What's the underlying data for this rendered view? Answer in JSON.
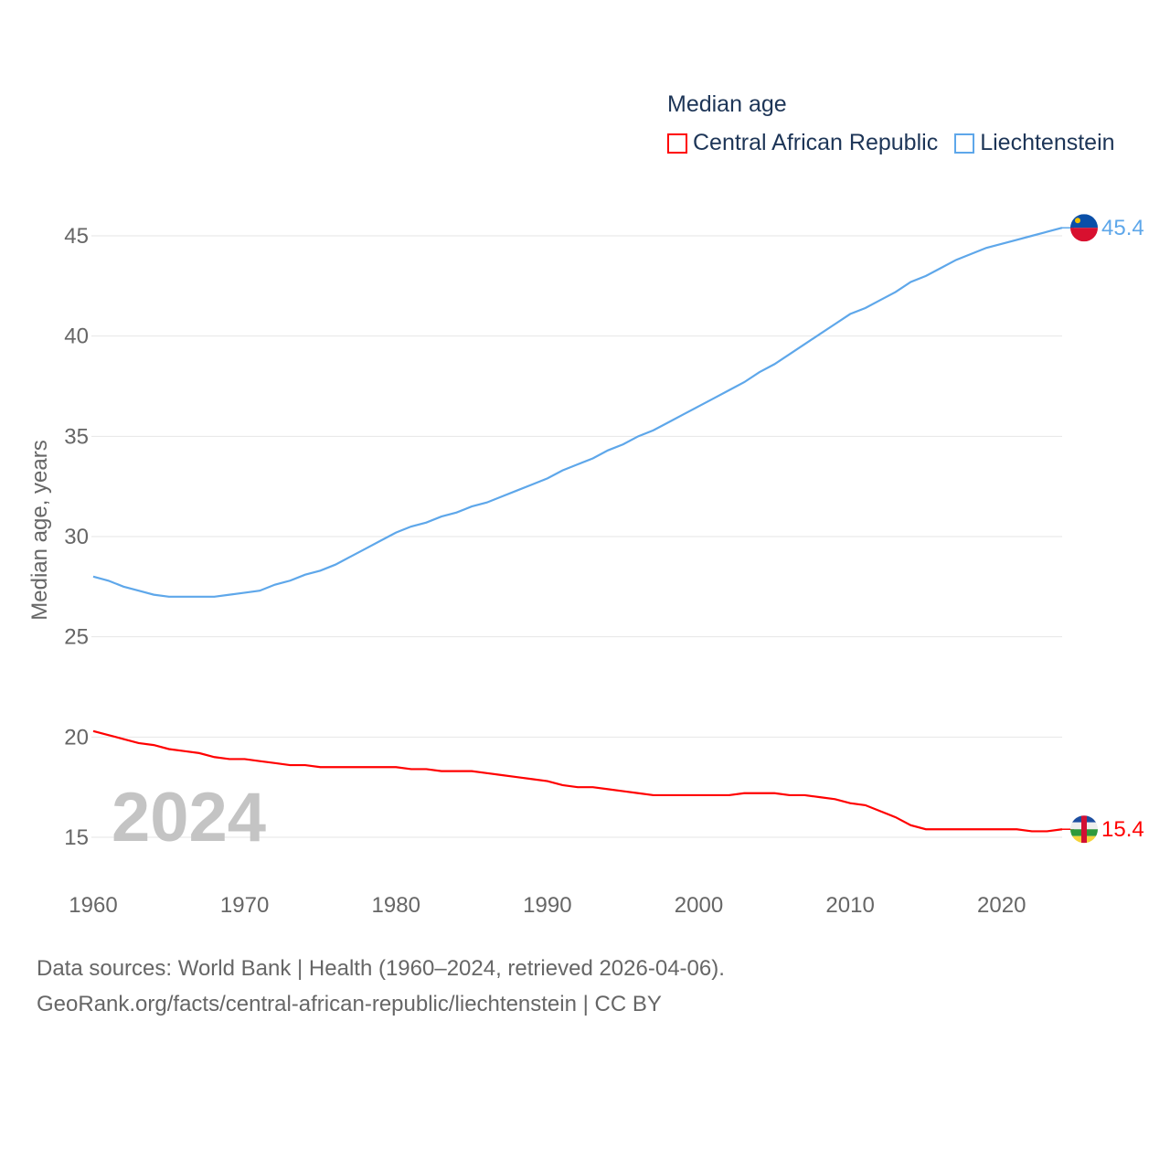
{
  "chart_data": {
    "type": "line",
    "title": "Median age",
    "ylabel": "Median age, years",
    "xlabel": "",
    "ylim": [
      13,
      47
    ],
    "xlim": [
      1960,
      2024
    ],
    "yticks": [
      15,
      20,
      25,
      30,
      35,
      40,
      45
    ],
    "xticks": [
      1960,
      1970,
      1980,
      1990,
      2000,
      2010,
      2020
    ],
    "grid": true,
    "legend_position": "top-right",
    "year_label": "2024",
    "x": [
      1960,
      1961,
      1962,
      1963,
      1964,
      1965,
      1966,
      1967,
      1968,
      1969,
      1970,
      1971,
      1972,
      1973,
      1974,
      1975,
      1976,
      1977,
      1978,
      1979,
      1980,
      1981,
      1982,
      1983,
      1984,
      1985,
      1986,
      1987,
      1988,
      1989,
      1990,
      1991,
      1992,
      1993,
      1994,
      1995,
      1996,
      1997,
      1998,
      1999,
      2000,
      2001,
      2002,
      2003,
      2004,
      2005,
      2006,
      2007,
      2008,
      2009,
      2010,
      2011,
      2012,
      2013,
      2014,
      2015,
      2016,
      2017,
      2018,
      2019,
      2020,
      2021,
      2022,
      2023,
      2024
    ],
    "series": [
      {
        "name": "Central African Republic",
        "color": "#ff0000",
        "end_label": "15.4",
        "values": [
          20.3,
          20.1,
          19.9,
          19.7,
          19.6,
          19.4,
          19.3,
          19.2,
          19.0,
          18.9,
          18.9,
          18.8,
          18.7,
          18.6,
          18.6,
          18.5,
          18.5,
          18.5,
          18.5,
          18.5,
          18.5,
          18.4,
          18.4,
          18.3,
          18.3,
          18.3,
          18.2,
          18.1,
          18.0,
          17.9,
          17.8,
          17.6,
          17.5,
          17.5,
          17.4,
          17.3,
          17.2,
          17.1,
          17.1,
          17.1,
          17.1,
          17.1,
          17.1,
          17.2,
          17.2,
          17.2,
          17.1,
          17.1,
          17.0,
          16.9,
          16.7,
          16.6,
          16.3,
          16.0,
          15.6,
          15.4,
          15.4,
          15.4,
          15.4,
          15.4,
          15.4,
          15.4,
          15.3,
          15.3,
          15.4
        ]
      },
      {
        "name": "Liechtenstein",
        "color": "#5ea7ea",
        "end_label": "45.4",
        "values": [
          28.0,
          27.8,
          27.5,
          27.3,
          27.1,
          27.0,
          27.0,
          27.0,
          27.0,
          27.1,
          27.2,
          27.3,
          27.6,
          27.8,
          28.1,
          28.3,
          28.6,
          29.0,
          29.4,
          29.8,
          30.2,
          30.5,
          30.7,
          31.0,
          31.2,
          31.5,
          31.7,
          32.0,
          32.3,
          32.6,
          32.9,
          33.3,
          33.6,
          33.9,
          34.3,
          34.6,
          35.0,
          35.3,
          35.7,
          36.1,
          36.5,
          36.9,
          37.3,
          37.7,
          38.2,
          38.6,
          39.1,
          39.6,
          40.1,
          40.6,
          41.1,
          41.4,
          41.8,
          42.2,
          42.7,
          43.0,
          43.4,
          43.8,
          44.1,
          44.4,
          44.6,
          44.8,
          45.0,
          45.2,
          45.4
        ]
      }
    ]
  },
  "footer": {
    "line1": "Data sources: World Bank | Health (1960–2024, retrieved 2026-04-06).",
    "line2": "GeoRank.org/facts/central-african-republic/liechtenstein | CC BY"
  }
}
